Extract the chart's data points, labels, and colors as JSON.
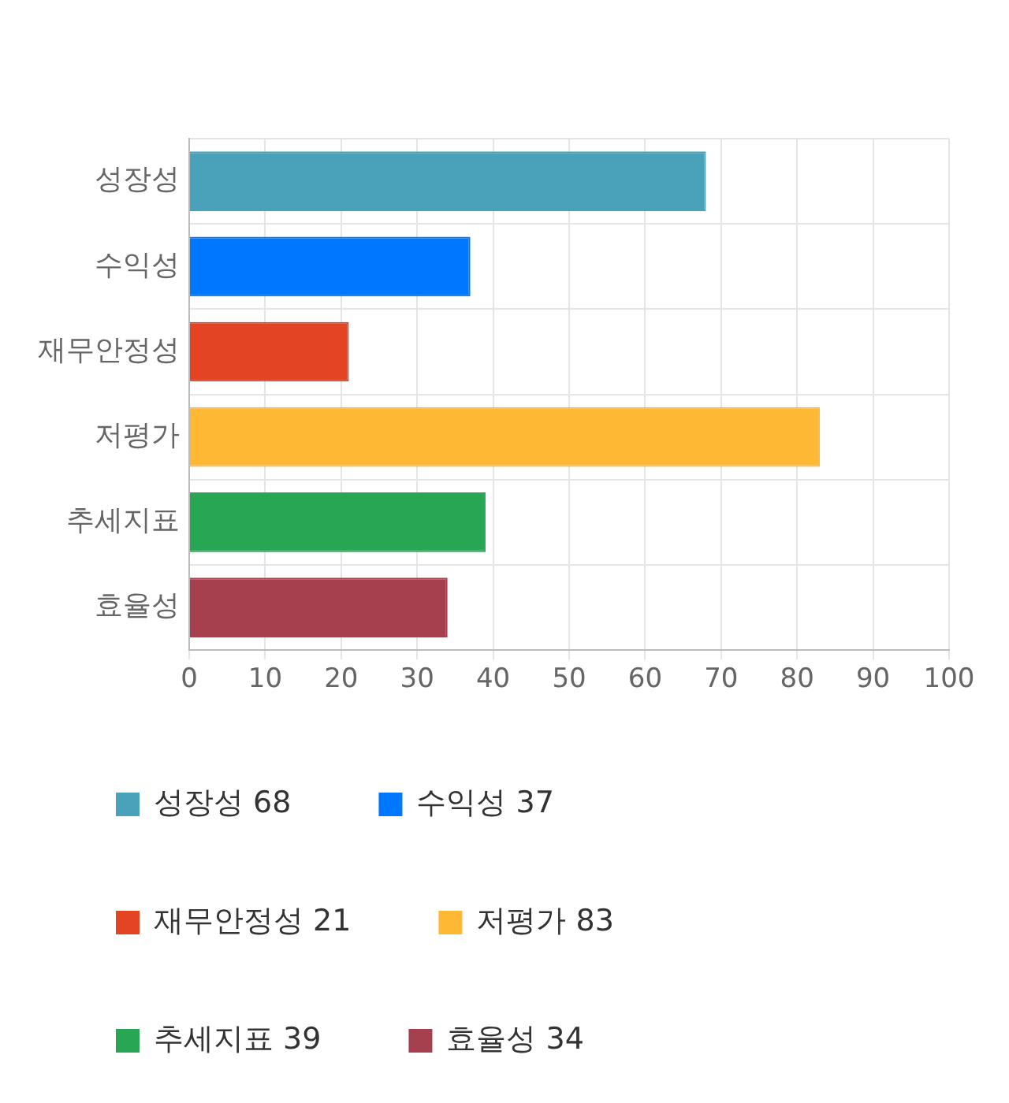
{
  "chart_data": {
    "type": "bar",
    "orientation": "horizontal",
    "categories": [
      "성장성",
      "수익성",
      "재무안정성",
      "저평가",
      "추세지표",
      "효율성"
    ],
    "series": [
      {
        "name": "성장성 68",
        "color": "#4aa2ba",
        "values": [
          68,
          null,
          null,
          null,
          null,
          null
        ]
      },
      {
        "name": "수익성 37",
        "color": "#0077ff",
        "values": [
          null,
          37,
          null,
          null,
          null,
          null
        ]
      },
      {
        "name": "재무안정성 21",
        "color": "#e34524",
        "values": [
          null,
          null,
          21,
          null,
          null,
          null
        ]
      },
      {
        "name": "저평가 83",
        "color": "#ffb833",
        "values": [
          null,
          null,
          null,
          83,
          null,
          null
        ]
      },
      {
        "name": "추세지표 39",
        "color": "#28a654",
        "values": [
          null,
          null,
          null,
          null,
          39,
          null
        ]
      },
      {
        "name": "효율성 34",
        "color": "#a6404f",
        "values": [
          null,
          null,
          null,
          null,
          null,
          34
        ]
      }
    ],
    "xlim": [
      0,
      100
    ],
    "xticks": [
      0,
      10,
      20,
      30,
      40,
      50,
      60,
      70,
      80,
      90,
      100
    ],
    "grid": true,
    "legend": "bottom"
  }
}
